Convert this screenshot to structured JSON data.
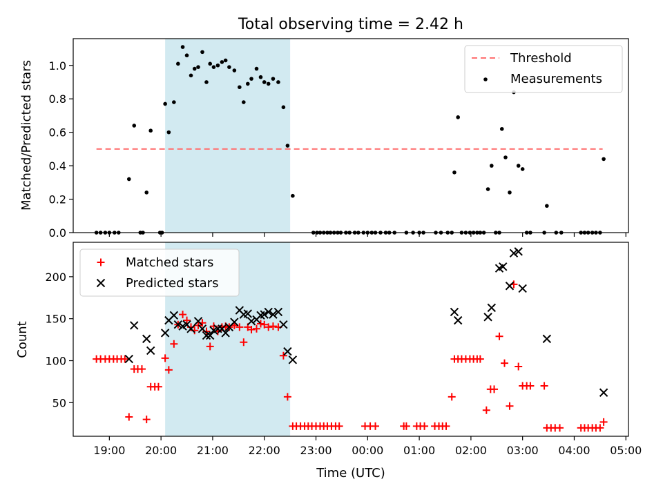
{
  "colors": {
    "threshold": "#ff7070",
    "measurement": "#000000",
    "matched": "#ff0000",
    "predicted": "#000000",
    "span": "#add8e6"
  },
  "chart_data": {
    "title": "Total observing time = 2.42 h",
    "xlabel": "Time (UTC)",
    "x_units": "hours since 00:00 of first night (values >= 24 are next day)",
    "xlim": [
      18.3,
      29.05
    ],
    "x_ticks": [
      19,
      20,
      21,
      22,
      23,
      24,
      25,
      26,
      27,
      28,
      29
    ],
    "x_tick_labels": [
      "19:00",
      "20:00",
      "21:00",
      "22:00",
      "23:00",
      "00:00",
      "01:00",
      "02:00",
      "03:00",
      "04:00",
      "05:00"
    ],
    "span": [
      20.08,
      22.5
    ],
    "top": {
      "type": "scatter",
      "ylabel": "Matched/Predicted stars",
      "ylim": [
        0,
        1.16
      ],
      "y_ticks": [
        "0.0",
        "0.2",
        "0.4",
        "0.6",
        "0.8",
        "1.0"
      ],
      "legend_position": "top-right",
      "threshold": {
        "name": "Threshold",
        "y": 0.5,
        "x_range": [
          18.75,
          28.55
        ]
      },
      "measurements": {
        "name": "Measurements",
        "points": [
          [
            18.75,
            0
          ],
          [
            18.83,
            0
          ],
          [
            18.92,
            0
          ],
          [
            19.0,
            0
          ],
          [
            19.1,
            0
          ],
          [
            19.18,
            0
          ],
          [
            19.38,
            0.32
          ],
          [
            19.48,
            0.64
          ],
          [
            19.6,
            0
          ],
          [
            19.65,
            0
          ],
          [
            19.72,
            0.24
          ],
          [
            19.8,
            0.61
          ],
          [
            19.98,
            0
          ],
          [
            20.02,
            0
          ],
          [
            20.08,
            0.77
          ],
          [
            20.15,
            0.6
          ],
          [
            20.25,
            0.78
          ],
          [
            20.33,
            1.01
          ],
          [
            20.42,
            1.11
          ],
          [
            20.5,
            1.06
          ],
          [
            20.58,
            0.94
          ],
          [
            20.65,
            0.98
          ],
          [
            20.72,
            0.99
          ],
          [
            20.8,
            1.08
          ],
          [
            20.88,
            0.9
          ],
          [
            20.95,
            1.01
          ],
          [
            21.02,
            0.99
          ],
          [
            21.1,
            1.0
          ],
          [
            21.18,
            1.02
          ],
          [
            21.25,
            1.03
          ],
          [
            21.32,
            0.99
          ],
          [
            21.42,
            0.97
          ],
          [
            21.52,
            0.87
          ],
          [
            21.6,
            0.78
          ],
          [
            21.68,
            0.89
          ],
          [
            21.75,
            0.92
          ],
          [
            21.85,
            0.98
          ],
          [
            21.93,
            0.93
          ],
          [
            22.0,
            0.9
          ],
          [
            22.08,
            0.89
          ],
          [
            22.17,
            0.92
          ],
          [
            22.27,
            0.9
          ],
          [
            22.37,
            0.75
          ],
          [
            22.45,
            0.52
          ],
          [
            22.55,
            0.22
          ],
          [
            22.95,
            0
          ],
          [
            23.02,
            0
          ],
          [
            23.08,
            0
          ],
          [
            23.15,
            0
          ],
          [
            23.22,
            0
          ],
          [
            23.28,
            0
          ],
          [
            23.35,
            0
          ],
          [
            23.42,
            0
          ],
          [
            23.48,
            0
          ],
          [
            23.58,
            0
          ],
          [
            23.65,
            0
          ],
          [
            23.75,
            0
          ],
          [
            23.82,
            0
          ],
          [
            23.92,
            0
          ],
          [
            24.0,
            0
          ],
          [
            24.08,
            0
          ],
          [
            24.15,
            0
          ],
          [
            24.25,
            0
          ],
          [
            24.35,
            0
          ],
          [
            24.42,
            0
          ],
          [
            24.52,
            0
          ],
          [
            24.75,
            0
          ],
          [
            24.88,
            0
          ],
          [
            25.0,
            0
          ],
          [
            25.08,
            0
          ],
          [
            25.32,
            0
          ],
          [
            25.42,
            0
          ],
          [
            25.55,
            0
          ],
          [
            25.63,
            0
          ],
          [
            25.68,
            0.36
          ],
          [
            25.75,
            0.69
          ],
          [
            25.82,
            0
          ],
          [
            25.9,
            0
          ],
          [
            25.98,
            0
          ],
          [
            26.05,
            0
          ],
          [
            26.12,
            0
          ],
          [
            26.18,
            0
          ],
          [
            26.25,
            0
          ],
          [
            26.33,
            0.26
          ],
          [
            26.4,
            0.4
          ],
          [
            26.48,
            0
          ],
          [
            26.55,
            0
          ],
          [
            26.6,
            0.62
          ],
          [
            26.67,
            0.45
          ],
          [
            26.75,
            0.24
          ],
          [
            26.83,
            0.84
          ],
          [
            26.92,
            0.4
          ],
          [
            27.0,
            0.38
          ],
          [
            27.08,
            0
          ],
          [
            27.15,
            0
          ],
          [
            27.42,
            0
          ],
          [
            27.47,
            0.16
          ],
          [
            27.65,
            0
          ],
          [
            27.75,
            0
          ],
          [
            28.13,
            0
          ],
          [
            28.2,
            0
          ],
          [
            28.27,
            0
          ],
          [
            28.35,
            0
          ],
          [
            28.42,
            0
          ],
          [
            28.5,
            0
          ],
          [
            28.57,
            0.44
          ]
        ]
      }
    },
    "bottom": {
      "type": "scatter",
      "ylabel": "Count",
      "ylim": [
        10,
        241
      ],
      "y_ticks": [
        "50",
        "100",
        "150",
        "200"
      ],
      "legend_position": "top-left",
      "matched": {
        "name": "Matched stars",
        "points": [
          [
            18.75,
            102
          ],
          [
            18.83,
            102
          ],
          [
            18.92,
            102
          ],
          [
            19.0,
            102
          ],
          [
            19.08,
            102
          ],
          [
            19.15,
            102
          ],
          [
            19.23,
            102
          ],
          [
            19.3,
            102
          ],
          [
            19.38,
            33
          ],
          [
            19.48,
            90
          ],
          [
            19.55,
            90
          ],
          [
            19.63,
            90
          ],
          [
            19.72,
            30
          ],
          [
            19.8,
            69
          ],
          [
            19.88,
            69
          ],
          [
            19.95,
            69
          ],
          [
            20.08,
            103
          ],
          [
            20.15,
            89
          ],
          [
            20.25,
            120
          ],
          [
            20.33,
            143
          ],
          [
            20.42,
            155
          ],
          [
            20.5,
            148
          ],
          [
            20.58,
            140
          ],
          [
            20.65,
            136
          ],
          [
            20.72,
            142
          ],
          [
            20.8,
            145
          ],
          [
            20.88,
            135
          ],
          [
            20.95,
            117
          ],
          [
            21.02,
            141
          ],
          [
            21.1,
            135
          ],
          [
            21.18,
            140
          ],
          [
            21.25,
            141
          ],
          [
            21.32,
            140
          ],
          [
            21.42,
            142
          ],
          [
            21.52,
            140
          ],
          [
            21.6,
            122
          ],
          [
            21.68,
            140
          ],
          [
            21.75,
            137
          ],
          [
            21.85,
            138
          ],
          [
            21.93,
            144
          ],
          [
            22.0,
            143
          ],
          [
            22.08,
            140
          ],
          [
            22.17,
            141
          ],
          [
            22.27,
            140
          ],
          [
            22.37,
            106
          ],
          [
            22.45,
            57
          ],
          [
            22.55,
            22
          ],
          [
            22.62,
            22
          ],
          [
            22.7,
            22
          ],
          [
            22.78,
            22
          ],
          [
            22.85,
            22
          ],
          [
            22.92,
            22
          ],
          [
            23.0,
            22
          ],
          [
            23.08,
            22
          ],
          [
            23.15,
            22
          ],
          [
            23.22,
            22
          ],
          [
            23.3,
            22
          ],
          [
            23.38,
            22
          ],
          [
            23.45,
            22
          ],
          [
            23.95,
            22
          ],
          [
            24.05,
            22
          ],
          [
            24.15,
            22
          ],
          [
            24.7,
            22
          ],
          [
            24.75,
            22
          ],
          [
            24.95,
            22
          ],
          [
            25.02,
            22
          ],
          [
            25.1,
            22
          ],
          [
            25.3,
            22
          ],
          [
            25.38,
            22
          ],
          [
            25.45,
            22
          ],
          [
            25.52,
            22
          ],
          [
            25.63,
            57
          ],
          [
            25.68,
            102
          ],
          [
            25.75,
            102
          ],
          [
            25.82,
            102
          ],
          [
            25.9,
            102
          ],
          [
            25.98,
            102
          ],
          [
            26.05,
            102
          ],
          [
            26.12,
            102
          ],
          [
            26.18,
            102
          ],
          [
            26.3,
            41
          ],
          [
            26.38,
            66
          ],
          [
            26.45,
            66
          ],
          [
            26.55,
            129
          ],
          [
            26.65,
            97
          ],
          [
            26.75,
            46
          ],
          [
            26.83,
            191
          ],
          [
            26.92,
            93
          ],
          [
            27.0,
            70
          ],
          [
            27.08,
            70
          ],
          [
            27.15,
            70
          ],
          [
            27.42,
            70
          ],
          [
            27.47,
            20
          ],
          [
            27.55,
            20
          ],
          [
            27.63,
            20
          ],
          [
            27.72,
            20
          ],
          [
            28.13,
            20
          ],
          [
            28.2,
            20
          ],
          [
            28.27,
            20
          ],
          [
            28.35,
            20
          ],
          [
            28.42,
            20
          ],
          [
            28.5,
            20
          ],
          [
            28.57,
            27
          ]
        ]
      },
      "predicted": {
        "name": "Predicted stars",
        "points": [
          [
            19.38,
            102
          ],
          [
            19.48,
            142
          ],
          [
            19.72,
            126
          ],
          [
            19.8,
            112
          ],
          [
            20.08,
            133
          ],
          [
            20.15,
            148
          ],
          [
            20.25,
            154
          ],
          [
            20.33,
            143
          ],
          [
            20.42,
            141
          ],
          [
            20.5,
            143
          ],
          [
            20.58,
            138
          ],
          [
            20.72,
            147
          ],
          [
            20.8,
            138
          ],
          [
            20.88,
            130
          ],
          [
            20.95,
            130
          ],
          [
            21.02,
            136
          ],
          [
            21.1,
            138
          ],
          [
            21.18,
            138
          ],
          [
            21.25,
            133
          ],
          [
            21.32,
            140
          ],
          [
            21.42,
            146
          ],
          [
            21.52,
            160
          ],
          [
            21.6,
            155
          ],
          [
            21.68,
            156
          ],
          [
            21.75,
            147
          ],
          [
            21.85,
            149
          ],
          [
            21.93,
            154
          ],
          [
            22.0,
            155
          ],
          [
            22.08,
            158
          ],
          [
            22.17,
            155
          ],
          [
            22.27,
            158
          ],
          [
            22.37,
            143
          ],
          [
            22.45,
            111
          ],
          [
            22.55,
            101
          ],
          [
            25.68,
            158
          ],
          [
            25.75,
            148
          ],
          [
            26.33,
            152
          ],
          [
            26.4,
            163
          ],
          [
            26.55,
            210
          ],
          [
            26.62,
            212
          ],
          [
            26.75,
            189
          ],
          [
            26.83,
            228
          ],
          [
            26.92,
            230
          ],
          [
            27.0,
            186
          ],
          [
            27.47,
            126
          ],
          [
            28.57,
            62
          ]
        ]
      }
    }
  }
}
